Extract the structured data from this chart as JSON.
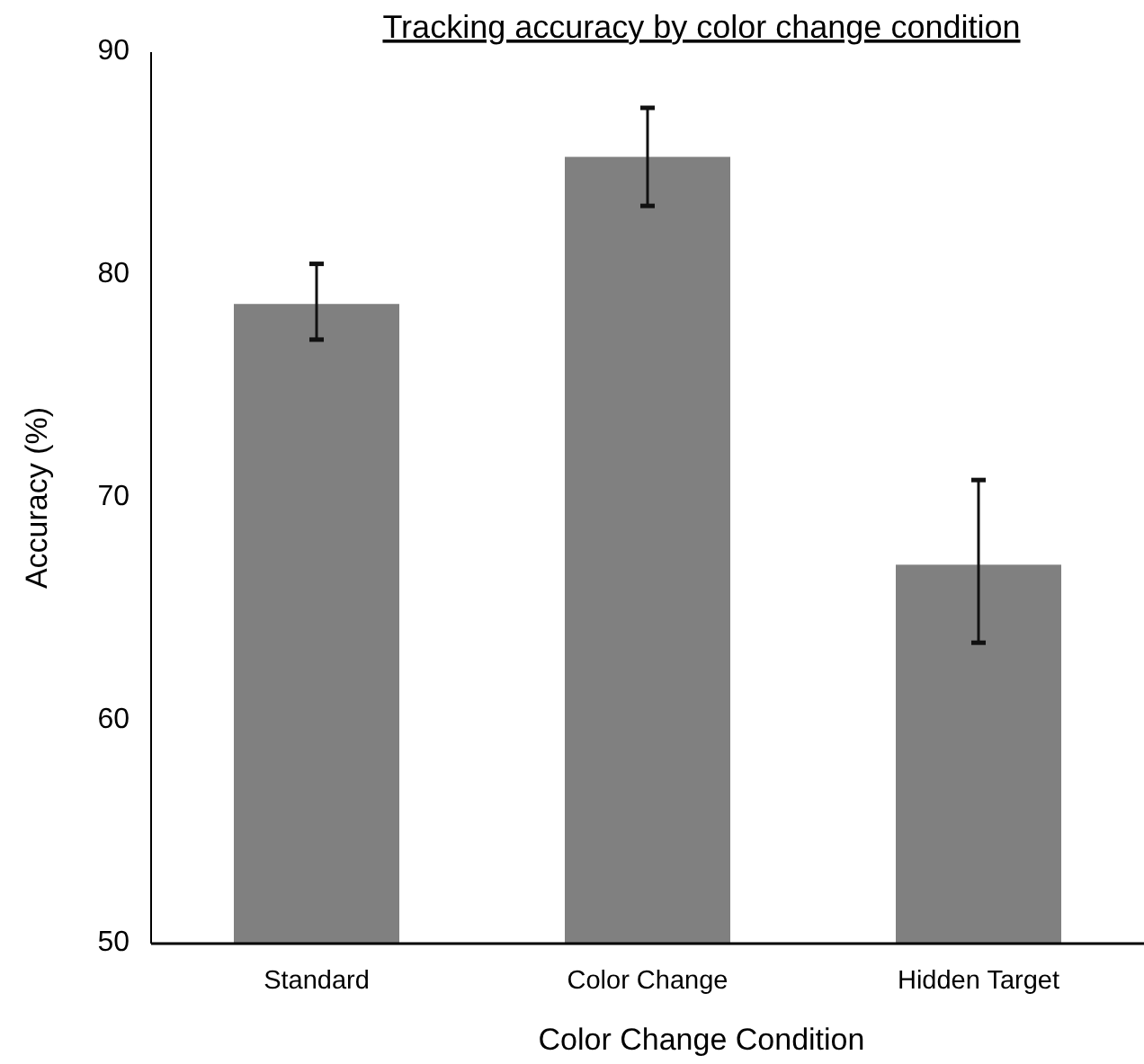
{
  "chart_data": {
    "type": "bar",
    "title": "Tracking accuracy by color change condition",
    "xlabel": "Color Change Condition",
    "ylabel": "Accuracy (%)",
    "categories": [
      "Standard",
      "Color Change",
      "Hidden Target"
    ],
    "values": [
      78.7,
      85.3,
      67.0
    ],
    "color": "#808080",
    "errors": [
      [
        77.1,
        80.5
      ],
      [
        83.1,
        87.5
      ],
      [
        63.5,
        70.8
      ]
    ],
    "ylim": [
      50,
      90
    ],
    "yticks": [
      50,
      60,
      70,
      80,
      90
    ],
    "grid": false
  }
}
